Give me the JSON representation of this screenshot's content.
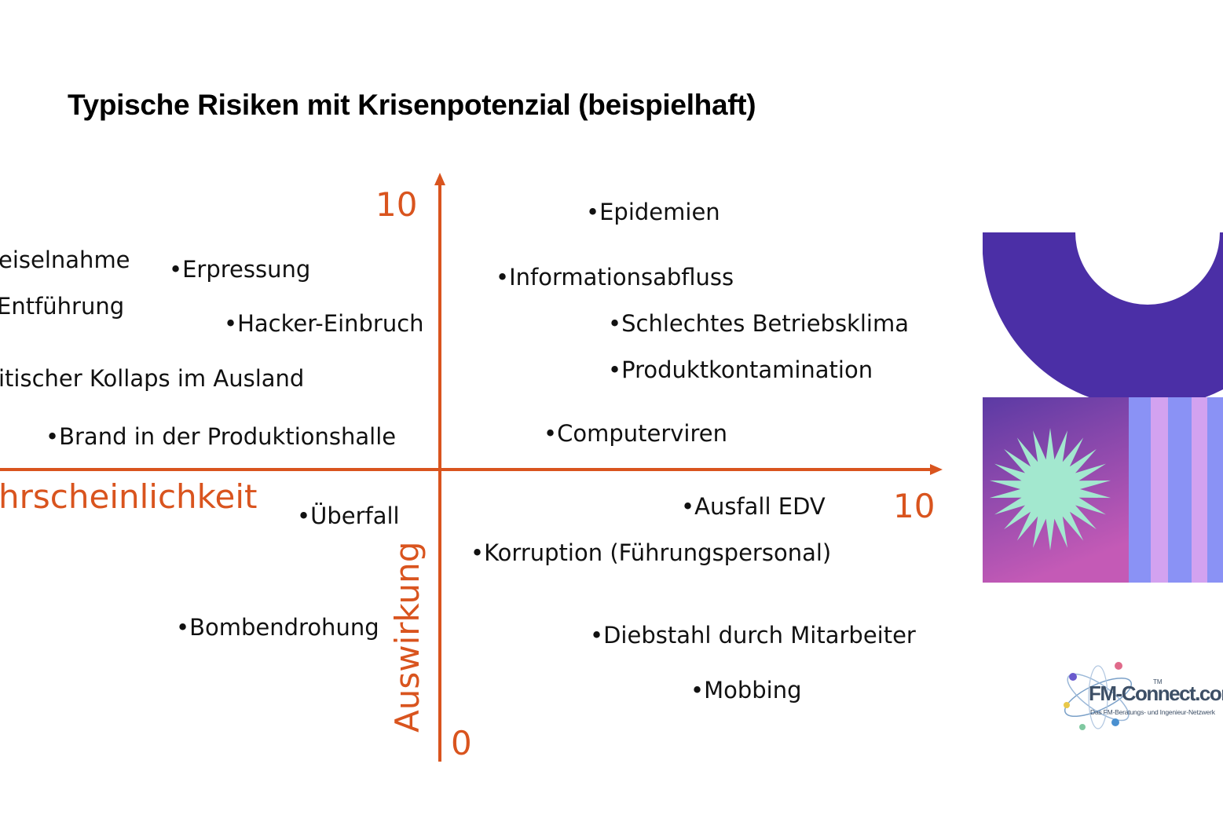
{
  "title": "Typische Risiken mit Krisenpotenzial (beispielhaft)",
  "axes": {
    "y_max_label": "10",
    "x_max_label": "10",
    "origin_label": "0",
    "x_title": "hrscheinlichkeit",
    "y_title": "Auswirkung",
    "color": "#d9541e"
  },
  "risks": [
    {
      "label": "•Epidemien"
    },
    {
      "label": "eiselnahme"
    },
    {
      "label": "•Erpressung"
    },
    {
      "label": "•Informationsabfluss"
    },
    {
      "label": "Entführung"
    },
    {
      "label": "•Hacker-Einbruch"
    },
    {
      "label": "•Schlechtes Betriebsklima"
    },
    {
      "label": "•Produktkontamination"
    },
    {
      "label": "itischer Kollaps im Ausland"
    },
    {
      "label": "•Brand in der Produktionshalle"
    },
    {
      "label": "•Computerviren"
    },
    {
      "label": "•Ausfall EDV"
    },
    {
      "label": "•Überfall"
    },
    {
      "label": "•Korruption (Führungspersonal)"
    },
    {
      "label": "•Bombendrohung"
    },
    {
      "label": "•Diebstahl durch Mitarbeiter"
    },
    {
      "label": "•Mobbing"
    }
  ],
  "decor": {
    "arc_color": "#4b2fa6",
    "starburst_color": "#a3e8cf",
    "stripe_colors": [
      "#8a92f5",
      "#d3a2f0"
    ],
    "panel_gradient": [
      "#5b3aa4",
      "#c45ab6"
    ]
  },
  "logo": {
    "brand": "FM-Connect.com",
    "trademark": "TM",
    "tagline": "Das FM-Beratungs- und Ingenieur-Netzwerk"
  }
}
